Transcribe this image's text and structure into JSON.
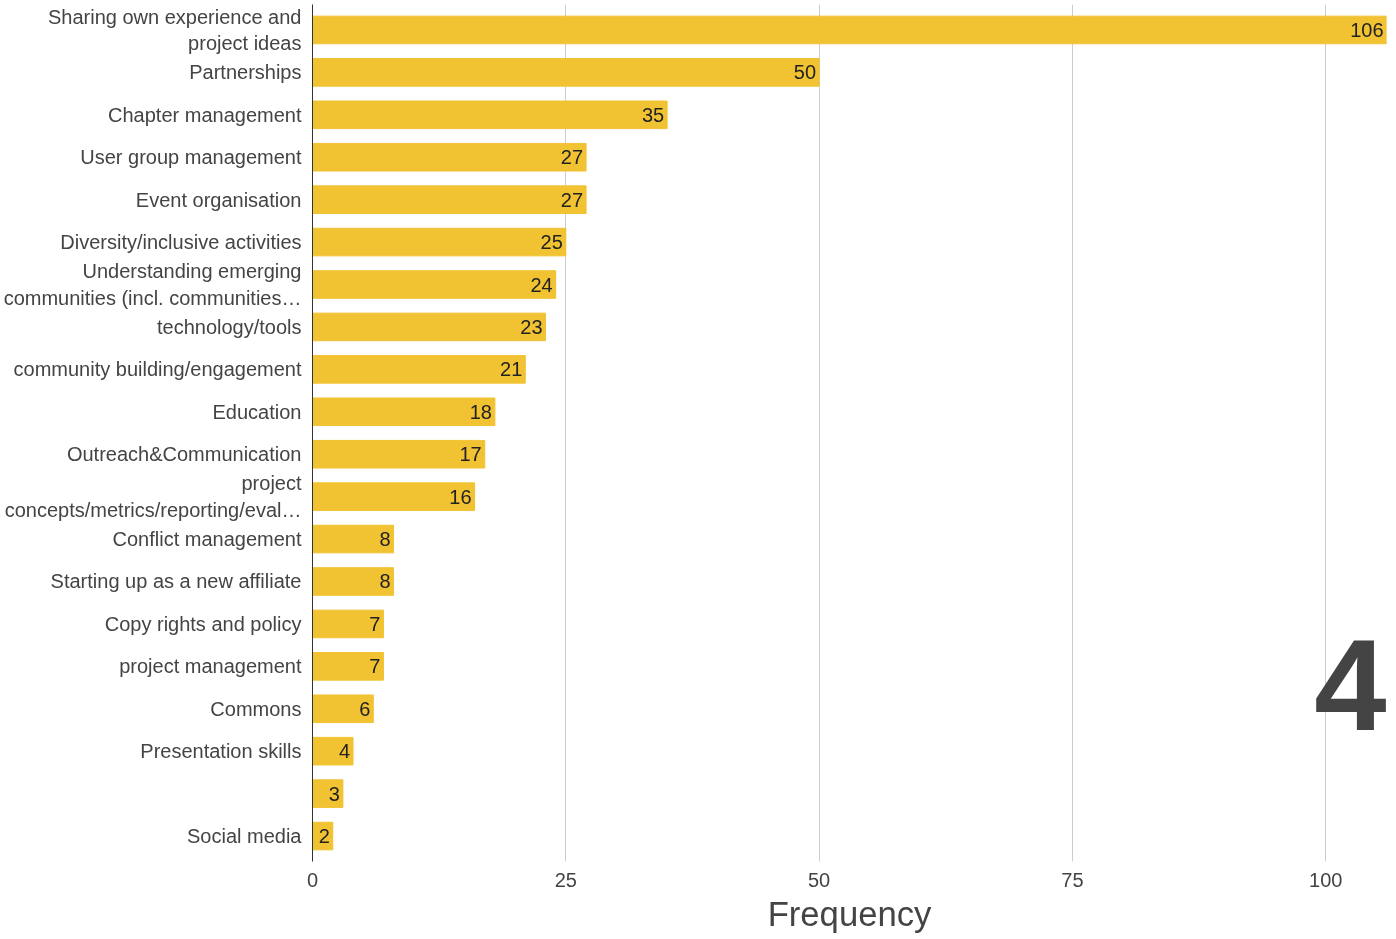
{
  "chart_data": {
    "type": "bar",
    "orientation": "horizontal",
    "xlabel": "Frequency",
    "categories": [
      "Sharing own experience and\nproject ideas",
      "Partnerships",
      "Chapter management",
      "User group management",
      "Event organisation",
      "Diversity/inclusive activities",
      "Understanding emerging\ncommunities (incl. communities…",
      "technology/tools",
      "community building/engagement",
      "Education",
      "Outreach&Communication",
      "project\nconcepts/metrics/reporting/eval…",
      "Conflict management",
      "Starting up as a new affiliate",
      "Copy rights and policy",
      "project management",
      "Commons",
      "Presentation skills",
      null,
      "Social media"
    ],
    "values": [
      106,
      50,
      35,
      27,
      27,
      25,
      24,
      23,
      21,
      18,
      17,
      16,
      8,
      8,
      7,
      7,
      6,
      4,
      3,
      2
    ],
    "color": "#f1c232",
    "xlim": [
      0,
      106
    ],
    "xticks": [
      0,
      25,
      50,
      75,
      100
    ],
    "grid": "x",
    "data_labels": true,
    "annotations": [
      "4"
    ]
  }
}
